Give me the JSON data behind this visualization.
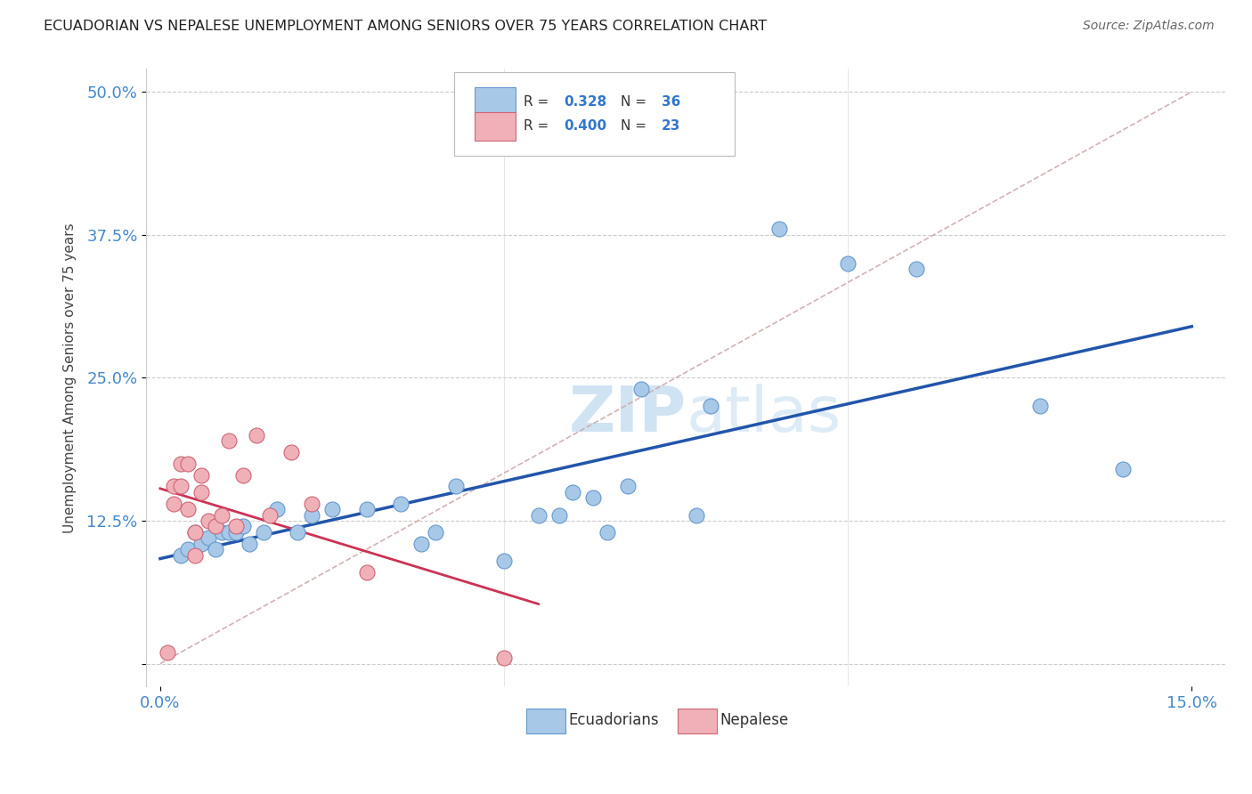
{
  "title": "ECUADORIAN VS NEPALESE UNEMPLOYMENT AMONG SENIORS OVER 75 YEARS CORRELATION CHART",
  "source": "Source: ZipAtlas.com",
  "ylabel_label": "Unemployment Among Seniors over 75 years",
  "xlim": [
    -0.002,
    0.155
  ],
  "ylim": [
    -0.02,
    0.52
  ],
  "x_ticks": [
    0.0,
    0.15
  ],
  "x_tick_labels": [
    "0.0%",
    "15.0%"
  ],
  "y_ticks": [
    0.0,
    0.125,
    0.25,
    0.375,
    0.5
  ],
  "y_tick_labels": [
    "",
    "12.5%",
    "25.0%",
    "37.5%",
    "50.0%"
  ],
  "ecuadorian_color": "#a8c8e8",
  "ecuadorian_edge": "#6699cc",
  "nepalese_color": "#f0b0b8",
  "nepalese_edge": "#cc6677",
  "trend_blue_color": "#2255aa",
  "trend_pink_color": "#cc3355",
  "diagonal_color": "#ccaaaa",
  "tick_color": "#4488cc",
  "watermark_color": "#ddeeff",
  "ecuadorian_x": [
    0.003,
    0.004,
    0.005,
    0.006,
    0.007,
    0.008,
    0.009,
    0.01,
    0.011,
    0.012,
    0.013,
    0.015,
    0.017,
    0.02,
    0.022,
    0.025,
    0.03,
    0.035,
    0.038,
    0.04,
    0.043,
    0.05,
    0.055,
    0.058,
    0.06,
    0.063,
    0.065,
    0.068,
    0.07,
    0.078,
    0.08,
    0.09,
    0.1,
    0.11,
    0.128,
    0.14
  ],
  "ecuadorian_y": [
    0.095,
    0.1,
    0.115,
    0.105,
    0.11,
    0.1,
    0.115,
    0.115,
    0.115,
    0.12,
    0.105,
    0.115,
    0.135,
    0.115,
    0.13,
    0.135,
    0.135,
    0.14,
    0.105,
    0.115,
    0.155,
    0.09,
    0.13,
    0.13,
    0.15,
    0.145,
    0.115,
    0.155,
    0.24,
    0.13,
    0.225,
    0.38,
    0.35,
    0.345,
    0.225,
    0.17
  ],
  "nepalese_x": [
    0.001,
    0.002,
    0.002,
    0.003,
    0.003,
    0.004,
    0.004,
    0.005,
    0.005,
    0.006,
    0.006,
    0.007,
    0.008,
    0.009,
    0.01,
    0.011,
    0.012,
    0.014,
    0.016,
    0.019,
    0.022,
    0.03,
    0.05
  ],
  "nepalese_y": [
    0.01,
    0.14,
    0.155,
    0.155,
    0.175,
    0.135,
    0.175,
    0.095,
    0.115,
    0.15,
    0.165,
    0.125,
    0.12,
    0.13,
    0.195,
    0.12,
    0.165,
    0.2,
    0.13,
    0.185,
    0.14,
    0.08,
    0.005
  ],
  "legend_R1": "0.328",
  "legend_N1": "36",
  "legend_R2": "0.400",
  "legend_N2": "23",
  "bottom_legend_labels": [
    "Ecuadorians",
    "Nepalese"
  ]
}
